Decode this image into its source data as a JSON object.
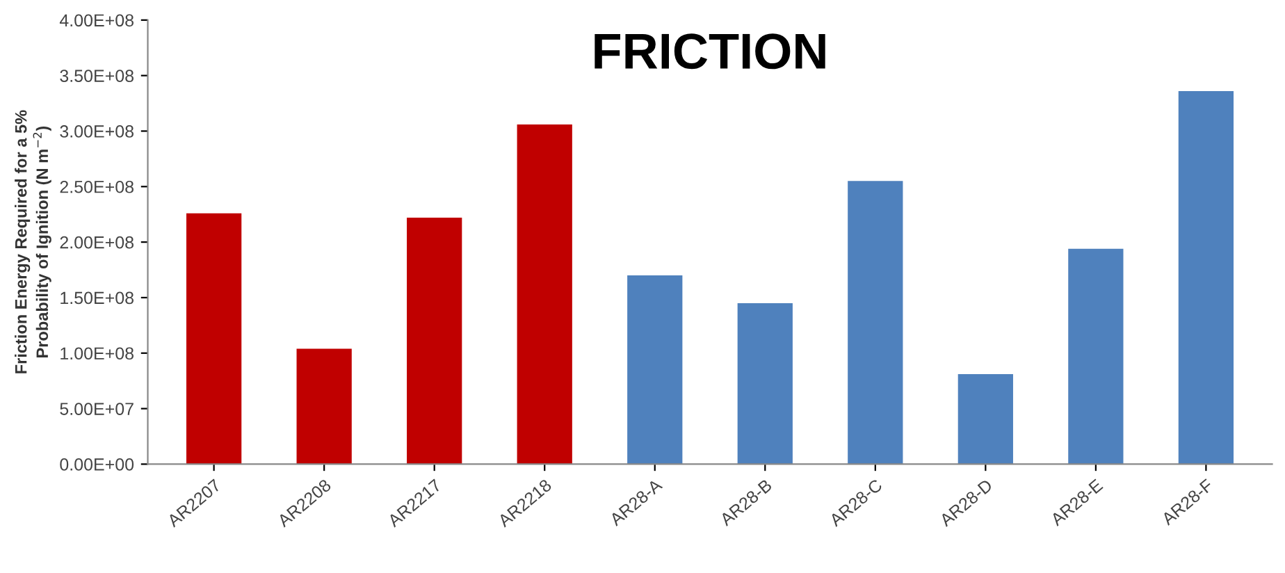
{
  "chart_data": {
    "type": "bar",
    "title": "FRICTION",
    "ylabel": "Friction Energy Required for a 5%\nProbability of Ignition (N m$^{−2}$)",
    "categories": [
      "AR2207",
      "AR2208",
      "AR2217",
      "AR2218",
      "AR28-A",
      "AR28-B",
      "AR28-C",
      "AR28-D",
      "AR28-E",
      "AR28-F"
    ],
    "values": [
      226000000,
      104000000,
      222000000,
      306000000,
      170000000,
      145000000,
      255000000,
      81000000,
      194000000,
      336000000
    ],
    "colors": [
      "#c00000",
      "#c00000",
      "#c00000",
      "#c00000",
      "#4f81bd",
      "#4f81bd",
      "#4f81bd",
      "#4f81bd",
      "#4f81bd",
      "#4f81bd"
    ],
    "ylim": [
      0,
      400000000
    ],
    "yticks": [
      {
        "value": 0,
        "label": "0.00E+00"
      },
      {
        "value": 50000000,
        "label": "5.00E+07"
      },
      {
        "value": 100000000,
        "label": "1.00E+08"
      },
      {
        "value": 150000000,
        "label": "1.50E+08"
      },
      {
        "value": 200000000,
        "label": "2.00E+08"
      },
      {
        "value": 250000000,
        "label": "2.50E+08"
      },
      {
        "value": 300000000,
        "label": "3.00E+08"
      },
      {
        "value": 350000000,
        "label": "3.50E+08"
      },
      {
        "value": 400000000,
        "label": "4.00E+08"
      }
    ],
    "grid": false
  }
}
